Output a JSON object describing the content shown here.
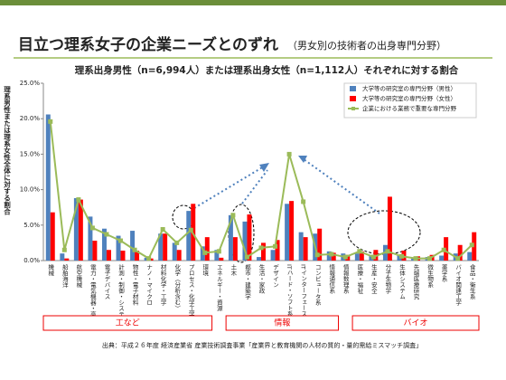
{
  "chart_data": {
    "type": "bar",
    "title": "目立つ理系女子の企業ニーズとのずれ",
    "title_note": "（男女別の技術者の出身専門分野）",
    "subtitle": "理系出身男性（n=6,994人）または理系出身女性（n=1,112人）それぞれに対する割合",
    "y_label": "理系男性または理系女性全体に対する割合",
    "source": "出典：平成２６年度 経済産業省 産業技術調査事業「産業界と教育機関の人材の質的・量的需給ミスマッチ調査」",
    "groups": [
      "工など",
      "情報",
      "バイオ"
    ],
    "categories": [
      "機械",
      "船舶海洋",
      "航空機械",
      "電力・電気機器・高電圧",
      "電子デバイス",
      "計測・制御・システム系",
      "物性・電子材料",
      "ナノ・マイクロ",
      "材料化学・工学",
      "化学（分析含む）",
      "プロセス・化学工学",
      "環境",
      "エネルギー・資源",
      "土木",
      "都市・建築学",
      "生活・家政",
      "デザイン",
      "ITハード・ソフト系",
      "ITインターフェース系",
      "コンピュータ系",
      "情報通信系",
      "情報数理系",
      "医療・福祉",
      "生産・安全",
      "分子生物学",
      "生体システム",
      "先端医療研究",
      "微生物系",
      "薬学系",
      "バイオ関連工学",
      "食品・衛生系"
    ],
    "series": [
      {
        "name": "大学等の研究室の専門分野（男性）",
        "type": "bar",
        "color": "#4f81bd",
        "values": [
          20.6,
          1.0,
          8.8,
          6.2,
          4.5,
          3.5,
          4.2,
          0.4,
          3.8,
          2.5,
          7.0,
          2.0,
          1.5,
          6.4,
          5.5,
          0.5,
          1.5,
          8.0,
          4.0,
          3.8,
          1.3,
          1.0,
          1.0,
          0.8,
          2.2,
          0.8,
          0.3,
          0.5,
          0.7,
          1.0,
          1.2
        ]
      },
      {
        "name": "大学等の研究室の専門分野（女性）",
        "type": "bar",
        "color": "#ff0000",
        "values": [
          6.8,
          0.3,
          8.6,
          2.8,
          1.5,
          1.4,
          1.4,
          0.3,
          3.8,
          1.5,
          8.0,
          3.3,
          0.4,
          3.3,
          6.5,
          2.5,
          2.9,
          8.4,
          3.3,
          4.5,
          1.1,
          0.8,
          1.3,
          1.5,
          9.0,
          1.4,
          0.6,
          0.8,
          3.3,
          2.2,
          4.0
        ]
      },
      {
        "name": "企業における業務で重要な専門分野",
        "type": "line",
        "color": "#9bbb59",
        "values": [
          19.6,
          1.5,
          8.6,
          4.6,
          3.7,
          2.8,
          1.5,
          0.3,
          4.4,
          2.5,
          4.3,
          1.1,
          1.3,
          6.4,
          0.5,
          1.8,
          2.0,
          15.0,
          8.3,
          0.8,
          0.9,
          0.5,
          1.3,
          0.5,
          1.3,
          0.6,
          0.3,
          0.3,
          1.5,
          0.3,
          2.2
        ]
      }
    ],
    "ylim": [
      0,
      25
    ],
    "yticks": [
      {
        "value": 0,
        "label": "0.0%"
      },
      {
        "value": 5,
        "label": "5.0%"
      },
      {
        "value": 10,
        "label": "10.0%"
      },
      {
        "value": 15,
        "label": "15.0%"
      },
      {
        "value": 20,
        "label": "20.0%"
      },
      {
        "value": 25,
        "label": "25.0%"
      }
    ],
    "grid": false
  }
}
